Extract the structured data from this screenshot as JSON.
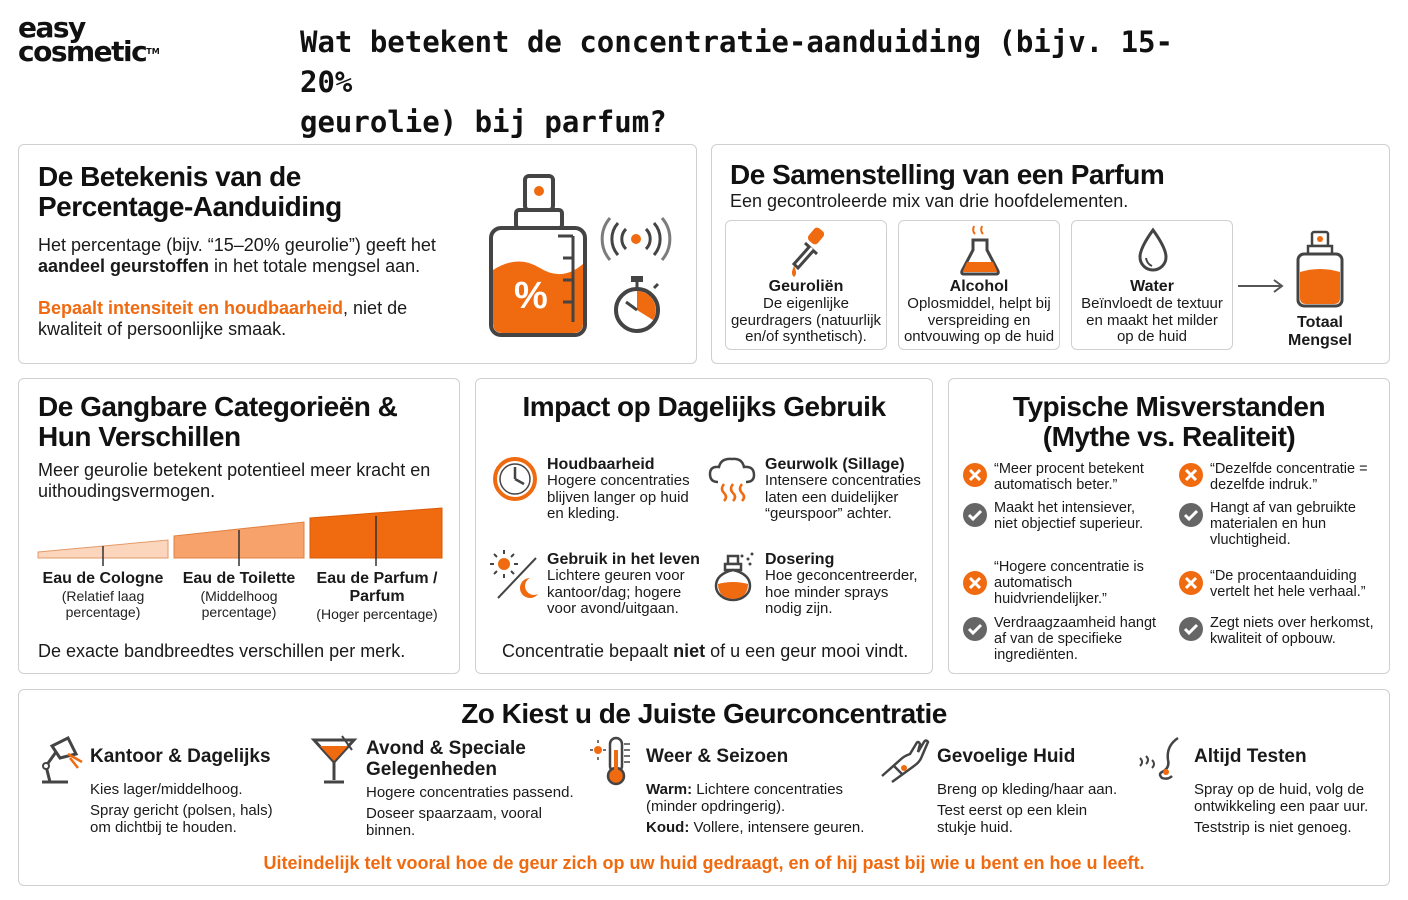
{
  "brand": {
    "line1": "easy",
    "line2": "cosmetic",
    "tm": "TM"
  },
  "title": {
    "line1": "Wat betekent de concentratie-aanduiding (bijv. 15-20%",
    "line2": "geurolie) bij parfum?"
  },
  "betekenis": {
    "title_l1": "De Betekenis van de",
    "title_l2": "Percentage-Aanduiding",
    "text_a": "Het percentage (bijv. “15–20% geurolie”) geeft het",
    "text_b_bold": "aandeel geurstoffen",
    "text_b_rest": " in het totale mengsel aan.",
    "highlight": "Bepaalt intensiteit en houdbaarheid",
    "text_c_rest": ", niet de",
    "text_d": "kwaliteit of persoonlijke smaak.",
    "bottle_symbol": "%"
  },
  "samenstelling": {
    "title": "De Samenstelling van een Parfum",
    "subtitle": "Een gecontroleerde mix van drie hoofdelementen.",
    "cards": [
      {
        "title": "Geuroliën",
        "lines": [
          "De eigenlijke",
          "geurdragers (natuurlijk",
          "en/of synthetisch)."
        ],
        "icon": "dropper-icon"
      },
      {
        "title": "Alcohol",
        "lines": [
          "Oplosmiddel, helpt bij",
          "verspreiding en",
          "ontvouwing op de huid"
        ],
        "icon": "flask-icon"
      },
      {
        "title": "Water",
        "lines": [
          "Beïnvloedt de textuur",
          "en maakt het milder",
          "op de huid"
        ],
        "icon": "water-drop-icon"
      }
    ],
    "total": [
      "Totaal",
      "Mengsel"
    ]
  },
  "categorieen": {
    "title_l1": "De Gangbare Categorieën &",
    "title_l2": "Hun Verschillen",
    "text_l1": "Meer geurolie betekent potentieel meer kracht en",
    "text_l2": "uithoudingsvermogen.",
    "items": [
      {
        "name": [
          "Eau de Cologne"
        ],
        "sub": [
          "(Relatief laag",
          "percentage)"
        ],
        "color": "#fbd5bc"
      },
      {
        "name": [
          "Eau de Toilette"
        ],
        "sub": [
          "(Middelhoog",
          "percentage)"
        ],
        "color": "#f7a26a"
      },
      {
        "name": [
          "Eau de Parfum /",
          "Parfum"
        ],
        "sub": [
          "(Hoger percentage)"
        ],
        "color": "#f06a10"
      }
    ],
    "footer": "De exacte bandbreedtes verschillen per merk."
  },
  "impact": {
    "title": "Impact op Dagelijks Gebruik",
    "items": [
      {
        "title": "Houdbaarheid",
        "lines": [
          "Hogere concentraties",
          "blijven langer op huid",
          "en kleding."
        ]
      },
      {
        "title": "Geurwolk (Sillage)",
        "lines": [
          "Intensere concentraties",
          "laten een duidelijker",
          "“geurspoor” achter."
        ]
      },
      {
        "title": "Gebruik in het leven",
        "lines": [
          "Lichtere geuren voor",
          "kantoor/dag; hogere",
          "voor avond/uitgaan."
        ]
      },
      {
        "title": "Dosering",
        "lines": [
          "Hoe geconcentreerder,",
          "hoe minder sprays",
          "nodig zijn."
        ]
      }
    ],
    "footer_a": "Concentratie bepaalt ",
    "footer_b": "niet",
    "footer_c": " of u een geur mooi vindt."
  },
  "misverstanden": {
    "title_l1": "Typische Misverstanden",
    "title_l2": "(Mythe vs. Realiteit)",
    "items": [
      {
        "myth": [
          "“Meer procent betekent",
          "automatisch beter.”"
        ],
        "reality": [
          "Maakt het intensiever,",
          "niet objectief superieur."
        ]
      },
      {
        "myth": [
          "“Dezelfde concentratie =",
          "dezelfde indruk.”"
        ],
        "reality": [
          "Hangt af van gebruikte",
          "materialen en hun",
          "vluchtigheid."
        ]
      },
      {
        "myth": [
          "“Hogere concentratie is",
          "automatisch",
          "huidvriendelijker.”"
        ],
        "reality": [
          "Verdraagzaamheid hangt",
          "af van de specifieke",
          "ingrediënten."
        ]
      },
      {
        "myth": [
          "“De procentaanduiding",
          "vertelt het hele verhaal.”"
        ],
        "reality": [
          "Zegt niets over herkomst,",
          "kwaliteit of opbouw."
        ]
      }
    ]
  },
  "kiezen": {
    "title": "Zo Kiest u de Juiste Geurconcentratie",
    "items": [
      {
        "title": [
          "Kantoor & Dagelijks"
        ],
        "lines": [
          "Kies lager/middelhoog.",
          "Spray gericht (polsen, hals)",
          "om dichtbij te houden."
        ],
        "icon": "desk-lamp-icon"
      },
      {
        "title": [
          "Avond & Speciale",
          "Gelegenheden"
        ],
        "lines": [
          "Hogere concentraties passend.",
          "Doseer spaarzaam, vooral",
          "binnen."
        ],
        "icon": "cocktail-icon"
      },
      {
        "title": [
          "Weer & Seizoen"
        ],
        "warm_label": "Warm:",
        "warm_text": " Lichtere concentraties",
        "warm_l2": "(minder opdringerig).",
        "koud_label": "Koud:",
        "koud_text": " Vollere, intensere geuren.",
        "icon": "thermometer-icon"
      },
      {
        "title": [
          "Gevoelige Huid"
        ],
        "lines": [
          "Breng op kleding/haar aan.",
          "Test eerst op een klein",
          "stukje huid."
        ],
        "icon": "wrist-icon"
      },
      {
        "title": [
          "Altijd Testen"
        ],
        "lines": [
          "Spray op de huid, volg de",
          "ontwikkeling een paar uur.",
          "Teststrip is niet genoeg."
        ],
        "icon": "nose-icon"
      }
    ],
    "footer": "Uiteindelijk telt vooral hoe de geur zich op uw huid gedraagt, en of hij past bij wie u bent en hoe u leeft."
  },
  "colors": {
    "accent": "#f06a10",
    "border": "#d0d0d0",
    "icon": "#444444",
    "check": "#666666"
  }
}
